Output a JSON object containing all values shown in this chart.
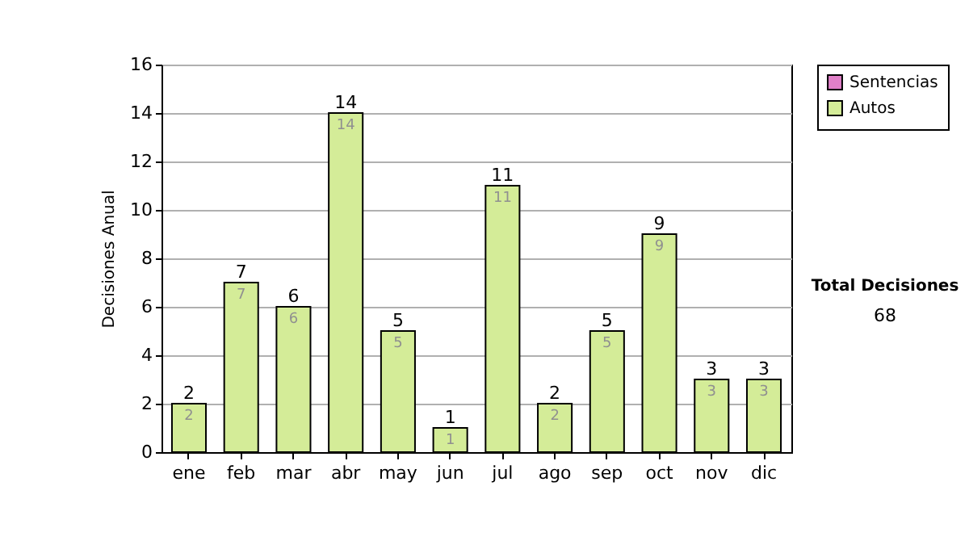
{
  "chart_data": {
    "type": "bar",
    "ylabel": "Decisiones Anual",
    "categories": [
      "ene",
      "feb",
      "mar",
      "abr",
      "may",
      "jun",
      "jul",
      "ago",
      "sep",
      "oct",
      "nov",
      "dic"
    ],
    "series": [
      {
        "name": "Sentencias",
        "color": "#e080c8",
        "values": [
          0,
          0,
          0,
          0,
          0,
          0,
          0,
          0,
          0,
          0,
          0,
          0
        ]
      },
      {
        "name": "Autos",
        "color": "#d4ec98",
        "values": [
          2,
          7,
          6,
          14,
          5,
          1,
          11,
          2,
          5,
          9,
          3,
          3
        ],
        "value_labels": [
          "2",
          "7",
          "6",
          "14",
          "5",
          "1",
          "11",
          "2",
          "5",
          "9",
          "3",
          "3"
        ]
      }
    ],
    "stacked": true,
    "totals": [
      "2",
      "7",
      "6",
      "14",
      "5",
      "1",
      "11",
      "2",
      "5",
      "9",
      "3",
      "3"
    ],
    "ylim": [
      0,
      16
    ],
    "yticks": [
      0,
      2,
      4,
      6,
      8,
      10,
      12,
      14,
      16
    ],
    "grid": "y",
    "legend": "right",
    "annotations": [
      "Total Decisiones",
      "68"
    ]
  }
}
